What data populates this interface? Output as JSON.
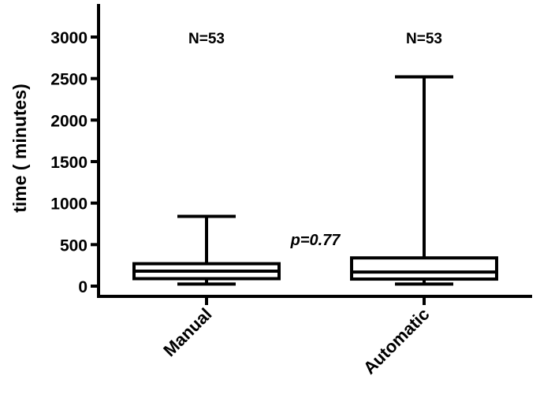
{
  "chart_data": {
    "type": "box",
    "title": "",
    "xlabel": "",
    "ylabel": "time ( minutes)",
    "ylim": [
      -70,
      3400
    ],
    "yticks": [
      0,
      500,
      1000,
      1500,
      2000,
      2500,
      3000
    ],
    "grid": false,
    "categories": [
      "Manual",
      "Automatic"
    ],
    "series": [
      {
        "category": "Manual",
        "min": 25,
        "q1": 90,
        "median": 180,
        "q3": 270,
        "max": 840,
        "n_label": "N=53"
      },
      {
        "category": "Automatic",
        "min": 25,
        "q1": 85,
        "median": 170,
        "q3": 340,
        "max": 2520,
        "n_label": "N=53"
      }
    ],
    "annotations": [
      {
        "text": "p=0.77",
        "x": 1.5,
        "y": 560
      }
    ]
  }
}
